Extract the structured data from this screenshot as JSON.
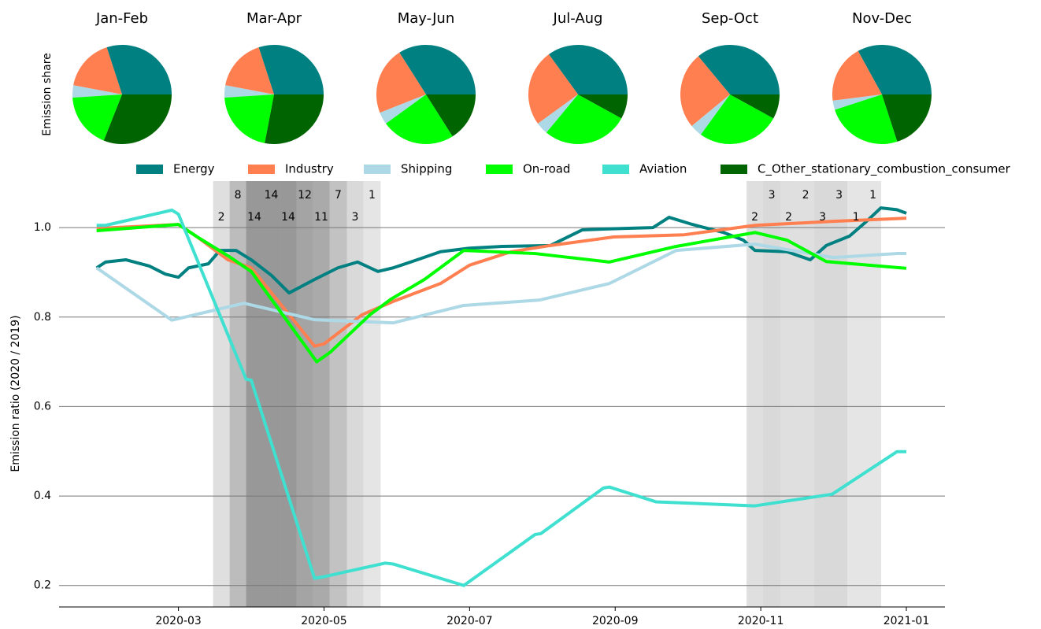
{
  "chart_data": [
    {
      "type": "pie",
      "title": "Jan-Feb",
      "y_label": "Emission share",
      "values": [
        30,
        17,
        4,
        18,
        31
      ],
      "colors": [
        "#008080",
        "#ff7f50",
        "#add8e6",
        "#00ff00",
        "#006400"
      ]
    },
    {
      "type": "pie",
      "title": "Mar-Apr",
      "values": [
        30,
        17,
        4,
        21,
        28
      ],
      "colors": [
        "#008080",
        "#ff7f50",
        "#add8e6",
        "#00ff00",
        "#006400"
      ]
    },
    {
      "type": "pie",
      "title": "May-Jun",
      "values": [
        34,
        22,
        4,
        24,
        16
      ],
      "colors": [
        "#008080",
        "#ff7f50",
        "#add8e6",
        "#00ff00",
        "#006400"
      ]
    },
    {
      "type": "pie",
      "title": "Jul-Aug",
      "values": [
        35,
        25,
        4,
        28,
        8
      ],
      "colors": [
        "#008080",
        "#ff7f50",
        "#add8e6",
        "#00ff00",
        "#006400"
      ]
    },
    {
      "type": "pie",
      "title": "Sep-Oct",
      "values": [
        36,
        25,
        4,
        27,
        8
      ],
      "colors": [
        "#008080",
        "#ff7f50",
        "#add8e6",
        "#00ff00",
        "#006400"
      ]
    },
    {
      "type": "pie",
      "title": "Nov-Dec",
      "values": [
        33,
        19,
        3,
        25,
        20
      ],
      "colors": [
        "#008080",
        "#ff7f50",
        "#add8e6",
        "#00ff00",
        "#006400"
      ]
    },
    {
      "type": "line",
      "y_label": "Emission ratio (2020 / 2019)",
      "xlim": [
        1.36,
        13.53
      ],
      "ylim": [
        0.152,
        1.104
      ],
      "xticks": [
        {
          "value": 3,
          "label": "2020-03"
        },
        {
          "value": 5,
          "label": "2020-05"
        },
        {
          "value": 7,
          "label": "2020-07"
        },
        {
          "value": 9,
          "label": "2020-09"
        },
        {
          "value": 11,
          "label": "2020-11"
        },
        {
          "value": 13,
          "label": "2021-01"
        }
      ],
      "yticks": [
        0.2,
        0.4,
        0.6,
        0.8,
        {
          "value": 1,
          "label": "1.0"
        }
      ],
      "grid": true,
      "bands": [
        {
          "x": [
            3.476,
            3.703
          ],
          "value": 2
        },
        {
          "x": [
            3.703,
            3.93
          ],
          "value": 8
        },
        {
          "x": [
            3.93,
            4.157
          ],
          "value": 14
        },
        {
          "x": [
            4.157,
            4.395
          ],
          "value": 14
        },
        {
          "x": [
            4.395,
            4.622
          ],
          "value": 14
        },
        {
          "x": [
            4.622,
            4.849
          ],
          "value": 12
        },
        {
          "x": [
            4.849,
            5.076
          ],
          "value": 11
        },
        {
          "x": [
            5.076,
            5.314
          ],
          "value": 7
        },
        {
          "x": [
            5.314,
            5.541
          ],
          "value": 3
        },
        {
          "x": [
            5.541,
            5.778
          ],
          "value": 1
        },
        {
          "x": [
            10.805,
            11.032
          ],
          "value": 2
        },
        {
          "x": [
            11.032,
            11.27
          ],
          "value": 3
        },
        {
          "x": [
            11.27,
            11.497
          ],
          "value": 2
        },
        {
          "x": [
            11.497,
            11.735
          ],
          "value": 2
        },
        {
          "x": [
            11.735,
            11.962
          ],
          "value": 3
        },
        {
          "x": [
            11.962,
            12.189
          ],
          "value": 3
        },
        {
          "x": [
            12.189,
            12.427
          ],
          "value": 1
        },
        {
          "x": [
            12.427,
            12.654
          ],
          "value": 1
        }
      ],
      "series": [
        {
          "name": "Energy",
          "color": "#008080",
          "x": [
            1.876,
            2.0,
            2.28,
            2.6,
            2.82,
            3.0,
            3.14,
            3.41,
            3.57,
            3.79,
            4.0,
            4.28,
            4.52,
            4.87,
            5.19,
            5.46,
            5.74,
            5.95,
            6.28,
            6.6,
            7.0,
            7.46,
            8.11,
            8.55,
            9.09,
            9.52,
            9.74,
            10.06,
            10.49,
            10.76,
            10.92,
            11.36,
            11.68,
            11.9,
            12.22,
            12.44,
            12.65,
            12.87,
            13.0
          ],
          "values": [
            0.91,
            0.923,
            0.928,
            0.914,
            0.896,
            0.889,
            0.91,
            0.919,
            0.949,
            0.949,
            0.928,
            0.893,
            0.854,
            0.884,
            0.91,
            0.923,
            0.902,
            0.91,
            0.928,
            0.946,
            0.954,
            0.958,
            0.96,
            0.995,
            0.998,
            1.0,
            1.023,
            1.007,
            0.989,
            0.972,
            0.949,
            0.946,
            0.928,
            0.96,
            0.981,
            1.012,
            1.044,
            1.04,
            1.032
          ]
        },
        {
          "name": "Industry",
          "color": "#ff7f50",
          "x": [
            1.876,
            3.0,
            3.25,
            3.68,
            4.0,
            4.87,
            5.0,
            5.52,
            5.95,
            6.6,
            7.0,
            7.57,
            8.11,
            8.98,
            9.95,
            10.92,
            12.0,
            13.0
          ],
          "values": [
            0.998,
            1.007,
            0.98,
            0.928,
            0.91,
            0.735,
            0.74,
            0.805,
            0.835,
            0.875,
            0.916,
            0.946,
            0.96,
            0.979,
            0.984,
            1.005,
            1.014,
            1.021
          ]
        },
        {
          "name": "Shipping",
          "color": "#add8e6",
          "x": [
            1.876,
            2.91,
            3.9,
            4.87,
            5.95,
            6.92,
            7.96,
            8.92,
            9.84,
            10.92,
            12.0,
            12.87,
            13.0
          ],
          "values": [
            0.91,
            0.793,
            0.831,
            0.794,
            0.787,
            0.826,
            0.838,
            0.875,
            0.949,
            0.963,
            0.933,
            0.942,
            0.942
          ]
        },
        {
          "name": "On-road",
          "color": "#00ff00",
          "x": [
            1.876,
            3.0,
            3.25,
            3.68,
            4.0,
            4.9,
            5.09,
            5.63,
            5.92,
            6.38,
            6.92,
            7.9,
            8.92,
            9.84,
            10.92,
            11.36,
            11.9,
            13.0
          ],
          "values": [
            0.993,
            1.007,
            0.98,
            0.937,
            0.902,
            0.7,
            0.722,
            0.805,
            0.84,
            0.884,
            0.949,
            0.942,
            0.923,
            0.958,
            0.989,
            0.972,
            0.924,
            0.909
          ]
        },
        {
          "name": "Aviation",
          "color": "#40e0d0",
          "x": [
            1.876,
            2.0,
            2.91,
            3.0,
            3.93,
            4.0,
            4.87,
            5.01,
            5.84,
            5.95,
            6.92,
            7.9,
            7.98,
            8.84,
            8.92,
            9.56,
            10.92,
            11.98,
            12.87,
            13.0
          ],
          "values": [
            1.005,
            1.005,
            1.039,
            1.03,
            0.661,
            0.659,
            0.216,
            0.22,
            0.25,
            0.248,
            0.2,
            0.314,
            0.316,
            0.418,
            0.42,
            0.387,
            0.378,
            0.404,
            0.499,
            0.499
          ]
        }
      ],
      "extra_legend": [
        {
          "name": "C_Other_stationary_combustion_consumer",
          "color": "#006400"
        }
      ]
    }
  ]
}
